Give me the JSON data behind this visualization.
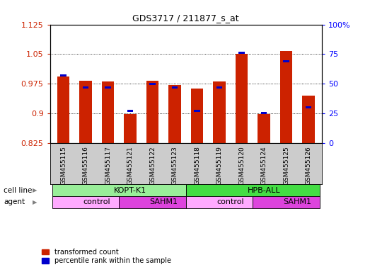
{
  "title": "GDS3717 / 211877_s_at",
  "samples": [
    "GSM455115",
    "GSM455116",
    "GSM455117",
    "GSM455121",
    "GSM455122",
    "GSM455123",
    "GSM455118",
    "GSM455119",
    "GSM455120",
    "GSM455124",
    "GSM455125",
    "GSM455126"
  ],
  "red_values": [
    0.993,
    0.982,
    0.981,
    0.898,
    0.983,
    0.972,
    0.962,
    0.981,
    1.05,
    0.899,
    1.058,
    0.944
  ],
  "blue_values_pct": [
    57,
    47,
    47,
    27,
    50,
    47,
    27,
    47,
    76,
    25,
    69,
    30
  ],
  "y_min": 0.825,
  "y_max": 1.125,
  "y_ticks": [
    0.825,
    0.9,
    0.975,
    1.05,
    1.125
  ],
  "y2_ticks": [
    0,
    25,
    50,
    75,
    100
  ],
  "red_color": "#cc2200",
  "blue_color": "#0000cc",
  "cell_line_groups": [
    {
      "label": "KOPT-K1",
      "start": 0,
      "end": 6,
      "color": "#99ee99"
    },
    {
      "label": "HPB-ALL",
      "start": 6,
      "end": 12,
      "color": "#44dd44"
    }
  ],
  "agent_groups": [
    {
      "label": "control",
      "start": 0,
      "end": 3,
      "color": "#ffaaff"
    },
    {
      "label": "SAHM1",
      "start": 3,
      "end": 6,
      "color": "#dd44dd"
    },
    {
      "label": "control",
      "start": 6,
      "end": 9,
      "color": "#ffaaff"
    },
    {
      "label": "SAHM1",
      "start": 9,
      "end": 12,
      "color": "#dd44dd"
    }
  ],
  "bar_width": 0.55,
  "plot_bg": "#ffffff",
  "tick_bg": "#cccccc",
  "cell_line_label": "cell line",
  "agent_label": "agent",
  "legend_items": [
    "transformed count",
    "percentile rank within the sample"
  ]
}
